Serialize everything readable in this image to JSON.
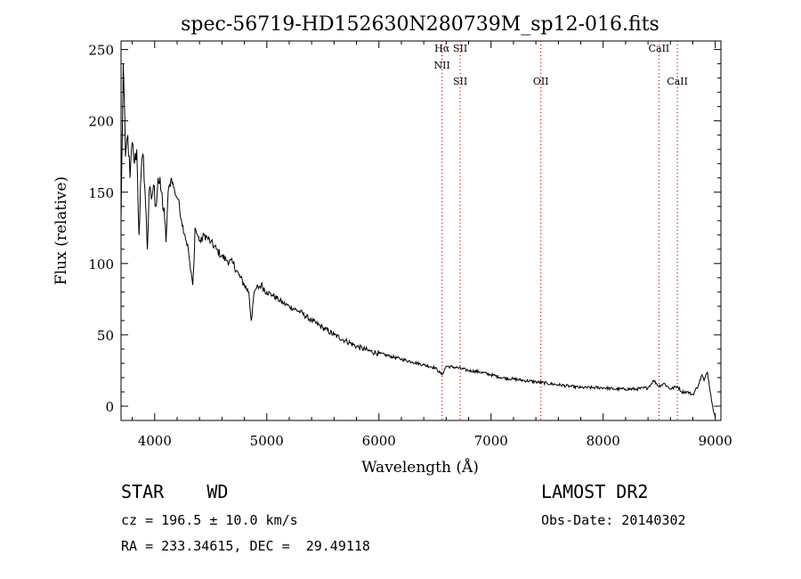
{
  "chart_data": {
    "type": "line",
    "title": "spec-56719-HD152630N280739M_sp12-016.fits",
    "xlabel": "Wavelength (Å)",
    "ylabel": "Flux (relative)",
    "xlim": [
      3700,
      9050
    ],
    "ylim": [
      -10,
      256
    ],
    "xticks": [
      4000,
      5000,
      6000,
      7000,
      8000,
      9000
    ],
    "yticks": [
      0,
      50,
      100,
      150,
      200,
      250
    ],
    "grid": false,
    "line_color": "#000000",
    "series": [
      {
        "x": [
          3700,
          3720,
          3740,
          3760,
          3780,
          3800,
          3820,
          3840,
          3860,
          3880,
          3900,
          3920,
          3935,
          3950,
          3970,
          3990,
          4010,
          4030,
          4060,
          4090,
          4101,
          4120,
          4150,
          4180,
          4210,
          4240,
          4270,
          4300,
          4320,
          4340,
          4350,
          4360,
          4380,
          4410,
          4440,
          4470,
          4500,
          4550,
          4600,
          4650,
          4700,
          4750,
          4800,
          4840,
          4861,
          4880,
          4900,
          4950,
          5000,
          5050,
          5100,
          5150,
          5200,
          5300,
          5400,
          5500,
          5600,
          5700,
          5800,
          5900,
          6000,
          6100,
          6200,
          6300,
          6400,
          6500,
          6563,
          6600,
          6700,
          6800,
          6900,
          7000,
          7100,
          7200,
          7300,
          7400,
          7500,
          7600,
          7700,
          7800,
          7900,
          8000,
          8100,
          8200,
          8300,
          8400,
          8450,
          8498,
          8542,
          8600,
          8662,
          8700,
          8750,
          8800,
          8850,
          8880,
          8900,
          8930,
          8960,
          8980,
          9000
        ],
        "y": [
          130,
          240,
          175,
          190,
          160,
          185,
          170,
          180,
          120,
          165,
          175,
          140,
          110,
          150,
          145,
          155,
          140,
          160,
          150,
          130,
          115,
          150,
          160,
          150,
          145,
          130,
          120,
          110,
          95,
          85,
          100,
          125,
          120,
          115,
          120,
          118,
          115,
          110,
          105,
          102,
          100,
          92,
          85,
          80,
          60,
          75,
          82,
          85,
          80,
          78,
          75,
          72,
          70,
          66,
          60,
          55,
          50,
          46,
          42,
          39,
          37,
          35,
          33,
          31,
          29,
          27,
          22,
          28,
          27,
          25,
          24,
          22,
          20,
          19,
          18,
          17,
          16,
          15,
          14,
          13,
          13,
          13,
          12,
          12,
          12,
          13,
          18,
          14,
          16,
          12,
          14,
          10,
          10,
          8,
          15,
          22,
          18,
          24,
          8,
          -2,
          -8
        ]
      }
    ],
    "annotations": [
      {
        "label": "Hα",
        "wavelength": 6563
      },
      {
        "label": "NII",
        "wavelength": 6563
      },
      {
        "label": "SII",
        "wavelength": 6725
      },
      {
        "label": "SII",
        "wavelength": 6725
      },
      {
        "label": "OII",
        "wavelength": 7444
      },
      {
        "label": "CaII",
        "wavelength": 8498
      },
      {
        "label": "CaII",
        "wavelength": 8662
      }
    ],
    "annotation_color": "#dd0000"
  },
  "info": {
    "object": "STAR    WD",
    "survey": "LAMOST DR2",
    "cz": "cz = 196.5 ± 10.0 km/s",
    "obsdate": "Obs-Date: 20140302",
    "coords": "RA = 233.34615, DEC =  29.49118"
  }
}
